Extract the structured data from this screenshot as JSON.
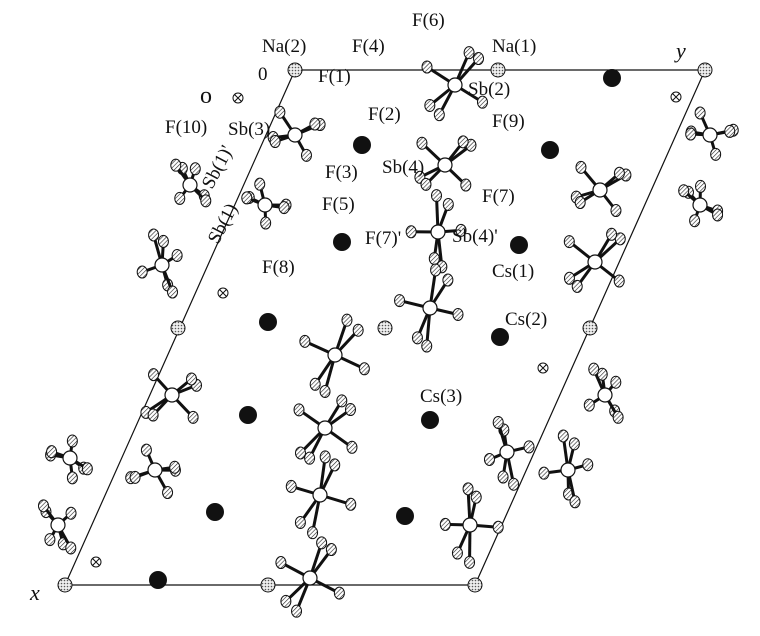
{
  "labels": [
    "0",
    "Na(2)",
    "F(4)",
    "F(6)",
    "Na(1)",
    "y",
    "F(1)",
    "o",
    "Sb(2)",
    "F(2)",
    "F(9)",
    "F(10)",
    "Sb(3)",
    "Sb(1)'",
    "F(3)",
    "Sb(4)",
    "F(7)",
    "F(5)",
    "Sb(1)",
    "F(7)'",
    "Sb(4)'",
    "Cs(1)",
    "F(8)",
    "Cs(2)",
    "Cs(3)",
    "x"
  ]
}
